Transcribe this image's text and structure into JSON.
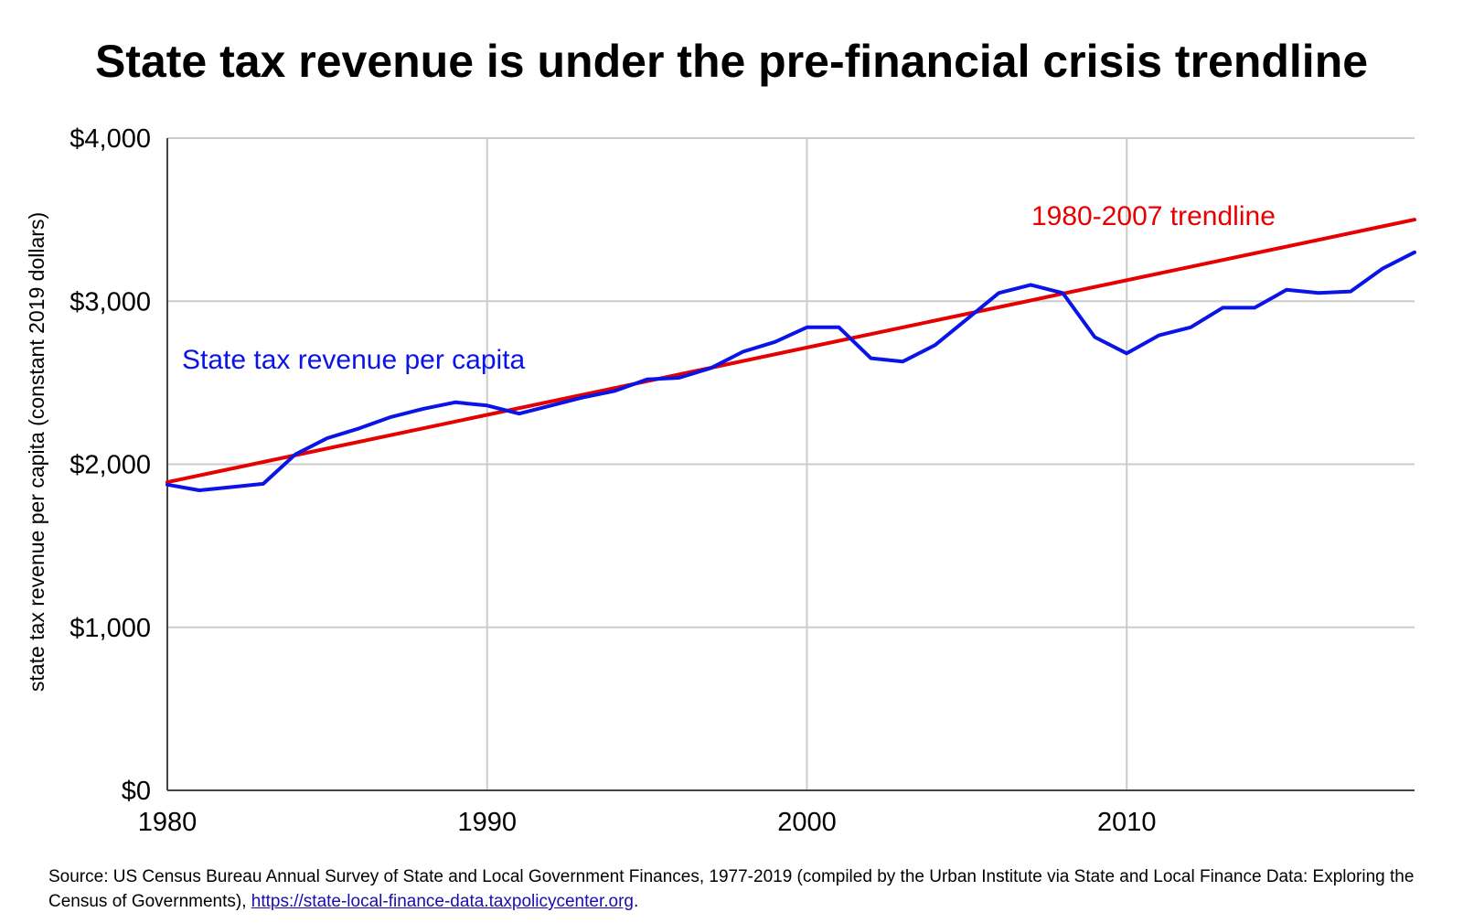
{
  "colors": {
    "revenue_line": "#0a14e6",
    "trend_line": "#e60000",
    "grid": "#cccccc",
    "axis": "#444444",
    "link": "#1a0dab"
  },
  "chart_data": {
    "type": "line",
    "title": "State tax revenue is under the pre-financial crisis trendline",
    "ylabel": "state tax revenue per capita (constant 2019 dollars)",
    "xlabel": "",
    "xlim": [
      1980,
      2019
    ],
    "ylim": [
      0,
      4000
    ],
    "x_ticks": [
      1980,
      1990,
      2000,
      2010
    ],
    "x_tick_labels": [
      "1980",
      "1990",
      "2000",
      "2010"
    ],
    "y_ticks": [
      0,
      1000,
      2000,
      3000,
      4000
    ],
    "y_tick_labels": [
      "$0",
      "$1,000",
      "$2,000",
      "$3,000",
      "$4,000"
    ],
    "grid": true,
    "series": [
      {
        "name": "State tax revenue per capita",
        "color": "#0a14e6",
        "x": [
          1980,
          1981,
          1982,
          1983,
          1984,
          1985,
          1986,
          1987,
          1988,
          1989,
          1990,
          1991,
          1992,
          1993,
          1994,
          1995,
          1996,
          1997,
          1998,
          1999,
          2000,
          2001,
          2002,
          2003,
          2004,
          2005,
          2006,
          2007,
          2008,
          2009,
          2010,
          2011,
          2012,
          2013,
          2014,
          2015,
          2016,
          2017,
          2018,
          2019
        ],
        "values": [
          1875,
          1840,
          1860,
          1880,
          2060,
          2160,
          2220,
          2290,
          2340,
          2380,
          2360,
          2310,
          2360,
          2410,
          2450,
          2520,
          2530,
          2590,
          2690,
          2750,
          2840,
          2840,
          2650,
          2630,
          2730,
          2890,
          3050,
          3100,
          3050,
          2780,
          2680,
          2790,
          2840,
          2960,
          2960,
          3070,
          3050,
          3060,
          3200,
          3300
        ]
      },
      {
        "name": "1980-2007 trendline",
        "color": "#e60000",
        "x": [
          1980,
          2019
        ],
        "values": [
          1890,
          3500
        ]
      }
    ],
    "annotations": [
      {
        "text": "State tax revenue per capita",
        "series": 0
      },
      {
        "text": "1980-2007 trendline",
        "series": 1
      }
    ]
  },
  "source": {
    "text": "Source: US Census Bureau Annual Survey of State and Local Government Finances, 1977-2019 (compiled by the Urban Institute via State and Local Finance Data: Exploring the Census of Governments), ",
    "link_text": "https://state-local-finance-data.taxpolicycenter.org",
    "trailing": "."
  }
}
